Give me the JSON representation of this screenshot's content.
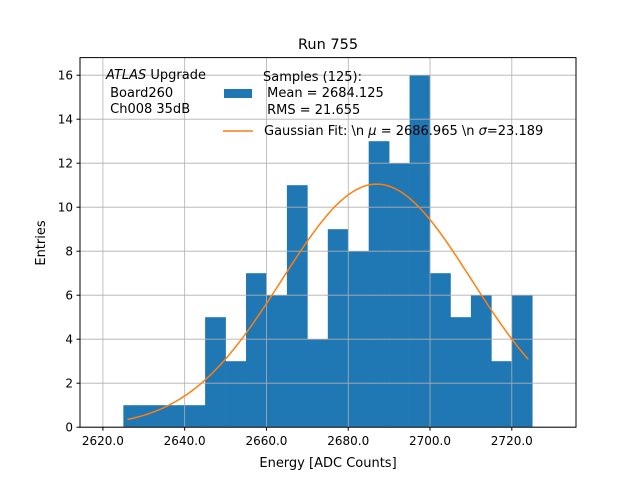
{
  "chart_data": {
    "type": "bar",
    "title": "Run 755",
    "xlabel": "Energy [ADC Counts]",
    "ylabel": "Entries",
    "xlim": [
      2614.4,
      2735.7
    ],
    "ylim": [
      0,
      16.8
    ],
    "xticks": [
      2620,
      2640,
      2660,
      2680,
      2700,
      2720
    ],
    "xtick_labels": [
      "2620.0",
      "2640.0",
      "2660.0",
      "2680.0",
      "2700.0",
      "2720.0"
    ],
    "yticks": [
      0,
      2,
      4,
      6,
      8,
      10,
      12,
      14,
      16
    ],
    "ytick_labels": [
      "0",
      "2",
      "4",
      "6",
      "8",
      "10",
      "12",
      "14",
      "16"
    ],
    "grid": true,
    "histogram": {
      "bin_edges": [
        2625,
        2630,
        2635,
        2640,
        2645,
        2650,
        2655,
        2660,
        2665,
        2670,
        2675,
        2680,
        2685,
        2690,
        2695,
        2700,
        2705,
        2710,
        2715,
        2720,
        2725
      ],
      "counts": [
        1,
        1,
        1,
        1,
        5,
        3,
        7,
        6,
        11,
        4,
        9,
        8,
        13,
        12,
        16,
        7,
        5,
        6,
        3,
        6
      ],
      "color": "#1f77b4"
    },
    "fit": {
      "type": "gaussian",
      "mu": 2686.965,
      "sigma": 23.189,
      "amplitude": 11.05,
      "x_range": [
        2626,
        2724
      ],
      "color": "#ff7f0e"
    },
    "annotation": {
      "italic": "ATLAS",
      "rest": " Upgrade",
      "line2": " Board260",
      "line3": " Ch008 35dB"
    },
    "legend": {
      "placement": "top-right",
      "hist_lines": [
        "Samples (125):",
        " Mean = 2684.125",
        " RMS = 21.655"
      ],
      "fit_label_parts": [
        "Gaussian Fit: \\n ",
        "μ",
        " = 2686.965 \\n ",
        "σ",
        "=23.189"
      ]
    }
  }
}
